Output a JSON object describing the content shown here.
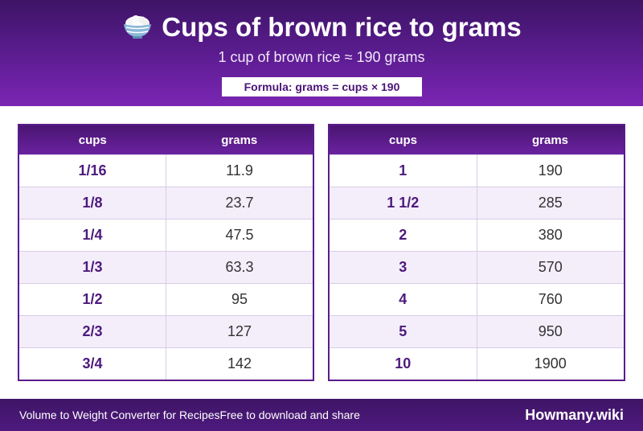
{
  "header": {
    "icon": "rice-bowl-icon",
    "title": "Cups of brown rice to grams",
    "subtitle": "1 cup of brown rice ≈ 190 grams",
    "formula": "Formula: grams = cups × 190"
  },
  "tables": {
    "left": {
      "col1": "cups",
      "col2": "grams",
      "rows": [
        {
          "cups": "1/16",
          "grams": "11.9"
        },
        {
          "cups": "1/8",
          "grams": "23.7"
        },
        {
          "cups": "1/4",
          "grams": "47.5"
        },
        {
          "cups": "1/3",
          "grams": "63.3"
        },
        {
          "cups": "1/2",
          "grams": "95"
        },
        {
          "cups": "2/3",
          "grams": "127"
        },
        {
          "cups": "3/4",
          "grams": "142"
        }
      ]
    },
    "right": {
      "col1": "cups",
      "col2": "grams",
      "rows": [
        {
          "cups": "1",
          "grams": "190"
        },
        {
          "cups": "1 1/2",
          "grams": "285"
        },
        {
          "cups": "2",
          "grams": "380"
        },
        {
          "cups": "3",
          "grams": "570"
        },
        {
          "cups": "4",
          "grams": "760"
        },
        {
          "cups": "5",
          "grams": "950"
        },
        {
          "cups": "10",
          "grams": "1900"
        }
      ]
    }
  },
  "footer": {
    "left_text": "Volume to Weight Converter for Recipes",
    "middle_text": "Free to download and share",
    "brand": "Howmany.wiki"
  },
  "colors": {
    "primary": "#5e1d93",
    "dark": "#3d1466",
    "row_alt": "#f4eefb"
  }
}
